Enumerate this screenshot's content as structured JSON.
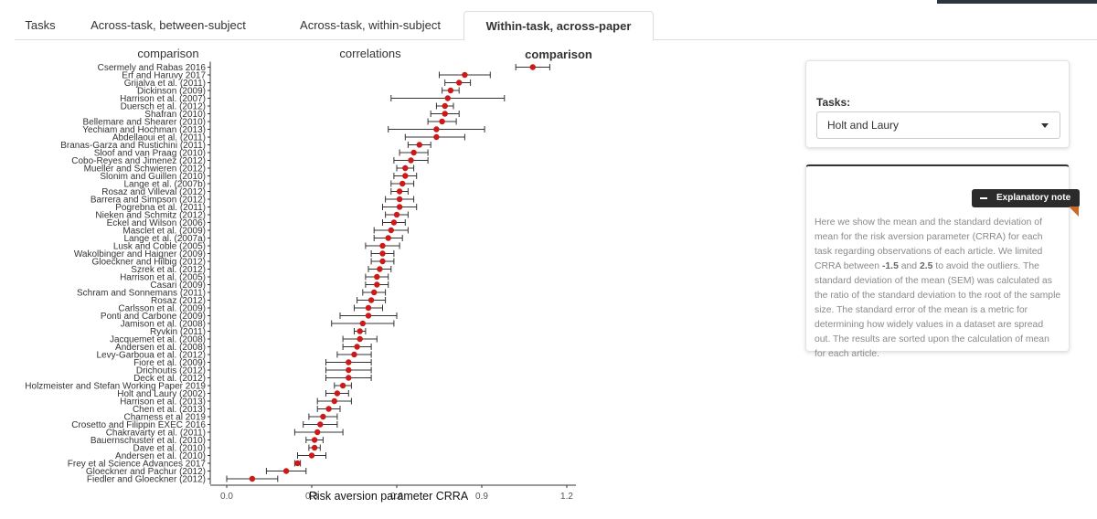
{
  "tabs": [
    {
      "label": "Tasks"
    },
    {
      "label": "Across-task, between-subject comparison"
    },
    {
      "label": "Across-task, within-subject correlations"
    },
    {
      "label": "Within-task, across-paper comparison"
    }
  ],
  "sidebar": {
    "tasks_label": "Tasks:",
    "task_select_value": "Holt and Laury",
    "note_button_label": "Explanatory note",
    "note": {
      "p1": "Here we show the mean and the standard deviation of mean for the risk aversion parameter (CRRA) for each task regarding observations of each article. We limited CRRA between ",
      "v1": "-1.5",
      "p2": " and ",
      "v2": "2.5",
      "p3": " to avoid the outliers. The standard deviation of the mean (SEM) was calculated as the ratio of the standard deviation to the root of the sample size. The standard error of the mean is a metric for determining how widely values in a dataset are spread out. The results are sorted upon the calculation of mean for each article."
    }
  },
  "colors": {
    "point": "#cc1a1a",
    "errorbar": "#333333"
  },
  "chart_data": {
    "type": "scatter",
    "xlabel": "Risk aversion parameter CRRA",
    "xlim": [
      0.0,
      1.2
    ],
    "xticks": [
      "0.0",
      "0.3",
      "0.6",
      "0.9",
      "1.2"
    ],
    "categories": [
      "Csermely and Rabas 2016",
      "Erf and Haruvy 2017",
      "Grijalva et al. (2011)",
      "Dickinson (2009)",
      "Harrison et al. (2007)",
      "Duersch et al. (2012)",
      "Shafran (2010)",
      "Bellemare and Shearer (2010)",
      "Yechiam and Hochman (2013)",
      "Abdellaoui et al. (2011)",
      "Branas-Garza and Rustichini (2011)",
      "Sloof and van Praag (2010)",
      "Cobo-Reyes and Jimenez (2012)",
      "Mueller and Schwieren (2012)",
      "Slonim and Guillen (2010)",
      "Lange et al. (2007b)",
      "Rosaz and Villeval (2012)",
      "Barrera and Simpson (2012)",
      "Pogrebna et al. (2011)",
      "Nieken and Schmitz (2012)",
      "Eckel and Wilson (2006)",
      "Masclet et al. (2009)",
      "Lange et al. (2007a)",
      "Lusk and Coble (2005)",
      "Wakolbinger and Haigner (2009)",
      "Gloeckner and Hilbig (2012)",
      "Szrek et al. (2012)",
      "Harrison et al. (2005)",
      "Casari (2009)",
      "Schram and Sonnemans (2011)",
      "Rosaz (2012)",
      "Carlsson et al. (2009)",
      "Ponti and Carbone (2009)",
      "Jamison et al. (2008)",
      "Ryvkin (2011)",
      "Jacquemet et al. (2008)",
      "Andersen et al. (2008)",
      "Levy-Garboua et al. (2012)",
      "Fiore et al. (2009)",
      "Drichoutis (2012)",
      "Deck et al. (2012)",
      "Holzmeister and Stefan Working Paper 2019",
      "Holt and Laury (2002)",
      "Harrison et al. (2013)",
      "Chen et al. (2013)",
      "Charness et al 2019",
      "Crosetto and Filippin EXEC 2016",
      "Chakravarty et al. (2011)",
      "Bauernschuster et al. (2010)",
      "Dave et al. (2010)",
      "Andersen et al. (2010)",
      "Frey et al Science Advances 2017",
      "Gloeckner and Pachur (2012)",
      "Fiedler and Gloeckner (2012)"
    ],
    "mean": [
      1.08,
      0.84,
      0.82,
      0.79,
      0.78,
      0.77,
      0.77,
      0.76,
      0.74,
      0.74,
      0.68,
      0.66,
      0.65,
      0.63,
      0.63,
      0.62,
      0.61,
      0.61,
      0.61,
      0.6,
      0.59,
      0.58,
      0.57,
      0.55,
      0.55,
      0.55,
      0.54,
      0.53,
      0.53,
      0.52,
      0.51,
      0.5,
      0.5,
      0.48,
      0.47,
      0.47,
      0.46,
      0.45,
      0.43,
      0.43,
      0.43,
      0.41,
      0.39,
      0.38,
      0.36,
      0.34,
      0.33,
      0.32,
      0.31,
      0.31,
      0.3,
      0.25,
      0.21,
      0.09
    ],
    "lower": [
      1.02,
      0.75,
      0.77,
      0.76,
      0.58,
      0.74,
      0.72,
      0.71,
      0.57,
      0.63,
      0.64,
      0.61,
      0.59,
      0.6,
      0.59,
      0.58,
      0.58,
      0.56,
      0.55,
      0.56,
      0.55,
      0.52,
      0.52,
      0.49,
      0.51,
      0.51,
      0.5,
      0.49,
      0.49,
      0.48,
      0.46,
      0.45,
      0.4,
      0.37,
      0.45,
      0.41,
      0.41,
      0.39,
      0.35,
      0.35,
      0.35,
      0.38,
      0.35,
      0.32,
      0.32,
      0.29,
      0.27,
      0.24,
      0.28,
      0.29,
      0.25,
      0.24,
      0.14,
      0.0
    ],
    "upper": [
      1.14,
      0.93,
      0.86,
      0.82,
      0.98,
      0.8,
      0.82,
      0.81,
      0.91,
      0.84,
      0.72,
      0.71,
      0.71,
      0.66,
      0.67,
      0.66,
      0.64,
      0.66,
      0.67,
      0.64,
      0.63,
      0.64,
      0.62,
      0.61,
      0.59,
      0.59,
      0.58,
      0.57,
      0.57,
      0.56,
      0.56,
      0.55,
      0.6,
      0.59,
      0.49,
      0.53,
      0.51,
      0.51,
      0.51,
      0.51,
      0.51,
      0.44,
      0.43,
      0.44,
      0.4,
      0.39,
      0.39,
      0.41,
      0.34,
      0.33,
      0.35,
      0.26,
      0.28,
      0.18
    ]
  }
}
